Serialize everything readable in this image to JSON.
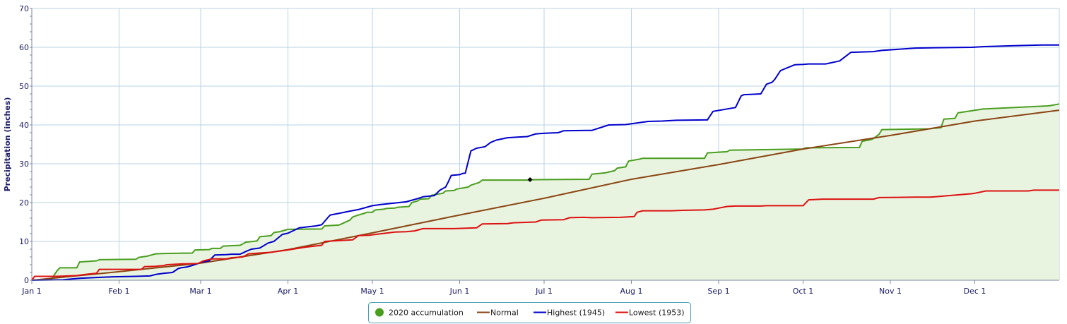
{
  "chart_data": {
    "type": "line",
    "ylabel": "Precipitation (inches)",
    "ylim": [
      0,
      70
    ],
    "yticks": [
      0,
      10,
      20,
      30,
      40,
      50,
      60,
      70
    ],
    "x_domain": [
      1,
      366
    ],
    "x_tick_labels": [
      "Jan 1",
      "Feb 1",
      "Mar 1",
      "Apr 1",
      "May 1",
      "Jun 1",
      "Jul 1",
      "Aug 1",
      "Sep 1",
      "Oct 1",
      "Nov 1",
      "Dec 1"
    ],
    "x_tick_days": [
      1,
      32,
      61,
      92,
      122,
      153,
      183,
      214,
      245,
      275,
      306,
      336
    ],
    "grid": true,
    "legend_position": "bottom-center",
    "highlight_point": {
      "day": 178,
      "value": 25.9
    },
    "series": [
      {
        "name": "2020 accumulation",
        "color": "#4a9e1f",
        "fill": "#e8f4e0",
        "marker": "circle",
        "x": [
          1,
          8,
          10,
          11,
          17,
          18,
          24,
          25,
          38,
          39,
          42,
          44,
          45,
          48,
          58,
          59,
          64,
          65,
          68,
          69,
          75,
          77,
          81,
          82,
          86,
          87,
          89,
          90,
          92,
          104,
          105,
          110,
          111,
          114,
          115,
          117,
          119,
          120,
          122,
          123,
          126,
          127,
          130,
          131,
          135,
          136,
          138,
          139,
          142,
          143,
          147,
          148,
          151,
          152,
          156,
          157,
          160,
          161,
          177,
          178,
          199,
          200,
          205,
          206,
          208,
          209,
          212,
          213,
          217,
          218,
          240,
          241,
          248,
          249,
          275,
          276,
          295,
          296,
          299,
          300,
          302,
          303,
          320,
          321,
          324,
          325,
          329,
          330,
          338,
          339,
          362,
          363,
          366
        ],
        "values": [
          0,
          0.3,
          2.5,
          3.2,
          3.2,
          4.7,
          5.0,
          5.3,
          5.4,
          5.9,
          6.2,
          6.6,
          6.8,
          6.9,
          7.0,
          7.8,
          7.9,
          8.2,
          8.2,
          8.8,
          9.0,
          9.8,
          10.1,
          11.2,
          11.5,
          12.3,
          12.5,
          12.7,
          13.1,
          13.2,
          14.0,
          14.2,
          14.5,
          15.5,
          16.3,
          16.8,
          17.2,
          17.5,
          17.5,
          18.1,
          18.3,
          18.5,
          18.6,
          18.8,
          19.0,
          20.0,
          20.4,
          20.9,
          21.0,
          21.9,
          22.4,
          23.0,
          23.1,
          23.5,
          24.0,
          24.5,
          25.2,
          25.8,
          25.8,
          25.9,
          26.0,
          27.3,
          27.7,
          27.9,
          28.2,
          28.9,
          29.2,
          30.7,
          31.2,
          31.4,
          31.4,
          32.8,
          33.1,
          33.5,
          33.8,
          34.1,
          34.2,
          35.8,
          36.2,
          36.5,
          37.6,
          38.8,
          39.0,
          39.1,
          39.3,
          41.5,
          41.7,
          43.1,
          44.0,
          44.1,
          44.9,
          45.0,
          45.4
        ]
      },
      {
        "name": "Normal",
        "color": "#8b4513",
        "x": [
          1,
          32,
          61,
          92,
          122,
          153,
          183,
          214,
          245,
          275,
          306,
          336,
          366
        ],
        "values": [
          0,
          2.2,
          4.4,
          7.9,
          12.2,
          16.8,
          21.1,
          26.0,
          29.8,
          33.8,
          37.3,
          41.0,
          43.8
        ]
      },
      {
        "name": "Highest (1945)",
        "color": "#0000cc",
        "x": [
          1,
          12,
          18,
          24,
          30,
          38,
          43,
          45,
          48,
          51,
          53,
          54,
          56,
          58,
          60,
          61,
          64,
          66,
          70,
          72,
          75,
          77,
          79,
          82,
          85,
          87,
          89,
          90,
          92,
          96,
          102,
          104,
          106,
          107,
          110,
          114,
          117,
          120,
          122,
          125,
          130,
          134,
          138,
          140,
          144,
          146,
          148,
          149,
          150,
          153,
          154,
          155,
          157,
          159,
          162,
          164,
          166,
          170,
          174,
          177,
          180,
          182,
          184,
          188,
          190,
          198,
          200,
          206,
          212,
          213,
          220,
          225,
          230,
          240,
          241,
          243,
          251,
          253,
          254,
          257,
          260,
          262,
          264,
          265,
          267,
          272,
          275,
          277,
          283,
          288,
          292,
          300,
          303,
          315,
          322,
          335,
          340,
          345,
          350,
          355,
          360,
          366
        ],
        "values": [
          0,
          0.1,
          0.5,
          0.7,
          0.9,
          1.0,
          1.1,
          1.5,
          1.8,
          2.0,
          3.0,
          3.2,
          3.4,
          3.8,
          4.3,
          4.6,
          5.0,
          6.5,
          6.6,
          6.7,
          6.7,
          7.4,
          8.0,
          8.3,
          9.6,
          10.0,
          11.2,
          11.8,
          12.1,
          13.5,
          14.0,
          14.3,
          16.0,
          16.8,
          17.2,
          17.8,
          18.2,
          18.8,
          19.2,
          19.5,
          19.9,
          20.2,
          21.0,
          21.5,
          21.8,
          23.2,
          24.0,
          25.4,
          27.0,
          27.2,
          27.5,
          27.6,
          33.3,
          34.0,
          34.4,
          35.5,
          36.1,
          36.7,
          36.9,
          37.0,
          37.7,
          37.8,
          37.9,
          38.0,
          38.5,
          38.6,
          38.6,
          40.0,
          40.1,
          40.2,
          40.9,
          41.0,
          41.2,
          41.3,
          41.3,
          43.5,
          44.5,
          47.5,
          47.8,
          47.9,
          48.0,
          50.5,
          51.0,
          51.8,
          54.0,
          55.5,
          55.6,
          55.7,
          55.7,
          56.5,
          58.7,
          58.9,
          59.2,
          59.8,
          59.9,
          60.0,
          60.2,
          60.3,
          60.4,
          60.5,
          60.6,
          60.6
        ]
      },
      {
        "name": "Lowest (1953)",
        "color": "#dd1111",
        "x": [
          1,
          2,
          10,
          17,
          20,
          24,
          25,
          35,
          40,
          41,
          45,
          48,
          49,
          54,
          60,
          62,
          65,
          70,
          72,
          76,
          78,
          82,
          86,
          88,
          92,
          98,
          104,
          105,
          110,
          115,
          117,
          121,
          122,
          130,
          134,
          137,
          140,
          145,
          151,
          159,
          161,
          170,
          172,
          180,
          182,
          190,
          192,
          197,
          200,
          210,
          215,
          216,
          218,
          228,
          232,
          240,
          243,
          248,
          251,
          260,
          262,
          270,
          275,
          277,
          282,
          300,
          302,
          315,
          320,
          322,
          335,
          336,
          340,
          355,
          357,
          366
        ],
        "values": [
          0,
          1.0,
          1.0,
          1.2,
          1.5,
          1.8,
          2.8,
          2.8,
          2.8,
          3.5,
          3.6,
          3.8,
          4.0,
          4.2,
          4.3,
          5.0,
          5.5,
          5.5,
          5.8,
          6.0,
          6.8,
          7.0,
          7.2,
          7.4,
          7.8,
          8.5,
          9.0,
          10.0,
          10.2,
          10.4,
          11.5,
          11.6,
          11.7,
          12.4,
          12.5,
          12.7,
          13.3,
          13.3,
          13.3,
          13.5,
          14.5,
          14.6,
          14.8,
          15.0,
          15.5,
          15.6,
          16.1,
          16.2,
          16.1,
          16.2,
          16.4,
          17.5,
          17.9,
          17.9,
          18.0,
          18.1,
          18.3,
          19.0,
          19.1,
          19.1,
          19.2,
          19.2,
          19.2,
          20.7,
          20.9,
          20.9,
          21.3,
          21.4,
          21.4,
          21.5,
          22.3,
          22.4,
          23.0,
          23.0,
          23.2,
          23.2
        ]
      }
    ]
  }
}
